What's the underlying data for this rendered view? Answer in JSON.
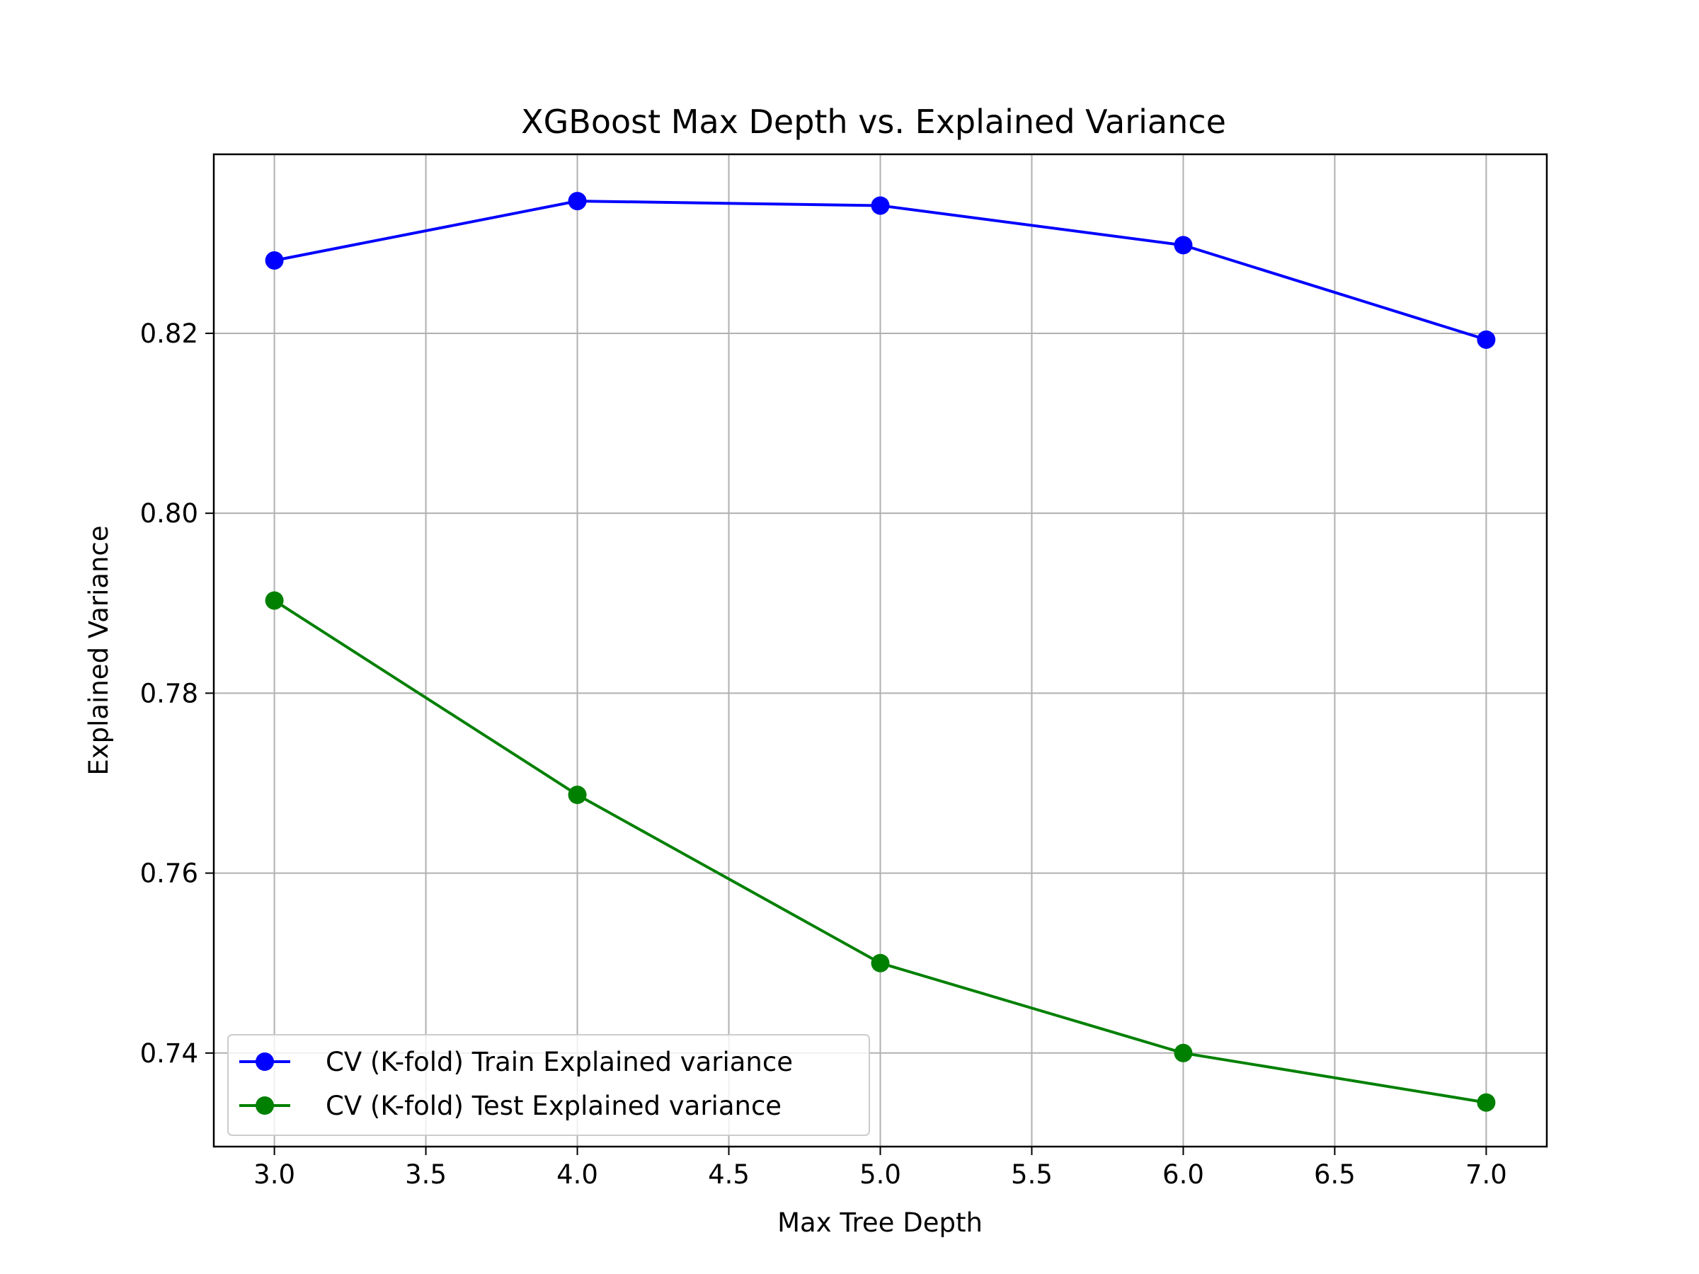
{
  "chart_data": {
    "type": "line",
    "title": "XGBoost Max Depth vs. Explained Variance",
    "xlabel": "Max Tree Depth",
    "ylabel": "Explained Variance",
    "xlim": [
      2.8,
      7.2
    ],
    "ylim": [
      0.7296,
      0.8399
    ],
    "xticks": [
      3.0,
      3.5,
      4.0,
      4.5,
      5.0,
      5.5,
      6.0,
      6.5,
      7.0
    ],
    "xtick_labels": [
      "3.0",
      "3.5",
      "4.0",
      "4.5",
      "5.0",
      "5.5",
      "6.0",
      "6.5",
      "7.0"
    ],
    "yticks": [
      0.74,
      0.76,
      0.78,
      0.8,
      0.82
    ],
    "ytick_labels": [
      "0.74",
      "0.76",
      "0.78",
      "0.80",
      "0.82"
    ],
    "grid": true,
    "legend_position": "lower-left",
    "x": [
      3,
      4,
      5,
      6,
      7
    ],
    "series": [
      {
        "name": "CV (K-fold) Train Explained variance",
        "color": "#0000ff",
        "marker": "circle",
        "values": [
          0.8281,
          0.8347,
          0.8342,
          0.8298,
          0.8193
        ]
      },
      {
        "name": "CV (K-fold) Test Explained variance",
        "color": "#008000",
        "marker": "circle",
        "values": [
          0.7903,
          0.7687,
          0.75,
          0.74,
          0.7345
        ]
      }
    ]
  }
}
